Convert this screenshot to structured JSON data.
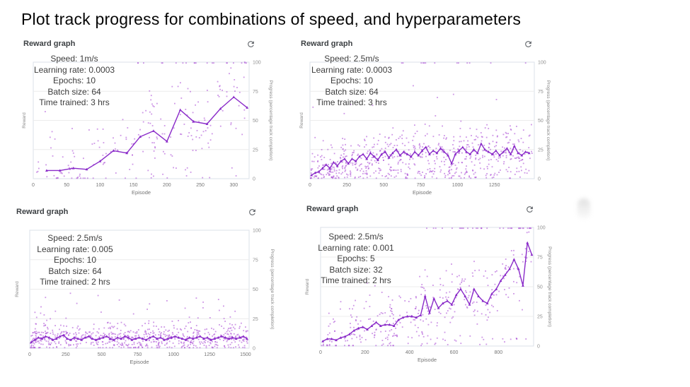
{
  "page": {
    "title": "Plot track progress for combinations of speed, and hyperparameters"
  },
  "icons": {
    "refresh": "refresh-icon"
  },
  "colors": {
    "line": "#8a2bc9",
    "scatter": "#ab4fd6",
    "grid": "#ececec",
    "plot_border": "#dbe0ea",
    "y_tick_text": "#919191",
    "x_tick_text": "#757575",
    "axis_label_text": "#8a8a8a",
    "header_text": "#3c4043",
    "icon": "#5f6368"
  },
  "axes": {
    "left_label": "Reward",
    "right_label": "Progress (percentage track completion)",
    "x_label": "Episode",
    "y_ticks": [
      0,
      25,
      50,
      75,
      100
    ],
    "y_range": [
      0,
      100
    ]
  },
  "chart_data": [
    {
      "type": "scatter",
      "title": "Reward graph",
      "annotation": [
        "Speed: 1m/s",
        "Learning rate: 0.0003",
        "Epochs: 10",
        "Batch size: 64",
        "Time trained: 3 hrs"
      ],
      "x_ticks": [
        0,
        50,
        100,
        150,
        200,
        250,
        300
      ],
      "x_max": 323,
      "line": {
        "x_start": 20,
        "x_step": 20,
        "values": [
          7,
          7,
          9,
          8,
          15,
          24,
          22,
          36,
          41,
          32,
          59,
          49,
          47,
          60,
          70,
          61
        ]
      },
      "scatter_spec": {
        "seed": 7,
        "count": 205,
        "x_min": 4,
        "x_max": 318,
        "spread": 46,
        "outlier_p": 0.06,
        "outlier_max": 35,
        "floor_p": 0.13,
        "floor_max": 10,
        "top_row": {
          "from": 140,
          "to": 320,
          "count": 20,
          "y": 99.3
        }
      }
    },
    {
      "type": "scatter",
      "title": "Reward graph",
      "annotation": [
        "Speed: 2.5m/s",
        "Learning rate: 0.0003",
        "Epochs: 10",
        "Batch size: 64",
        "Time trained: 3 hrs"
      ],
      "x_ticks": [
        0,
        250,
        500,
        750,
        1000,
        1250
      ],
      "x_max": 1520,
      "line": {
        "x_start": 10,
        "x_step": 25,
        "values": [
          3,
          5,
          6,
          9,
          12,
          9,
          14,
          11,
          15,
          17,
          13,
          17,
          15,
          19,
          21,
          17,
          22,
          19,
          16,
          21,
          23,
          18,
          22,
          25,
          20,
          23,
          21,
          19,
          23,
          20,
          24,
          27,
          21,
          24,
          22,
          26,
          23,
          20,
          13,
          21,
          24,
          27,
          23,
          21,
          25,
          22,
          30,
          25,
          23,
          21,
          24,
          20,
          23,
          26,
          21,
          28,
          22,
          20,
          23,
          22
        ]
      },
      "scatter_spec": {
        "seed": 11,
        "count": 660,
        "x_min": 4,
        "x_max": 1505,
        "spread": 30,
        "outlier_p": 0.05,
        "outlier_max": 65,
        "floor_p": 0.18,
        "floor_max": 9,
        "top_row": {
          "from": 620,
          "to": 1490,
          "count": 13,
          "y": 99.3
        }
      }
    },
    {
      "type": "scatter",
      "title": "Reward graph",
      "annotation": [
        "Speed: 2.5m/s",
        "Learning rate: 0.005",
        "Epochs: 10",
        "Batch size: 64",
        "Time trained: 2 hrs"
      ],
      "x_ticks": [
        0,
        250,
        500,
        750,
        1000,
        1250,
        1500
      ],
      "x_max": 1525,
      "line": {
        "x_start": 10,
        "x_step": 25,
        "values": [
          5,
          7,
          9,
          8,
          10,
          9,
          7,
          8,
          10,
          11,
          8,
          7,
          9,
          8,
          7,
          9,
          10,
          8,
          7,
          8,
          9,
          10,
          8,
          7,
          9,
          8,
          10,
          9,
          7,
          8,
          9,
          8,
          7,
          9,
          10,
          8,
          9,
          7,
          8,
          9,
          10,
          9,
          8,
          7,
          9,
          8,
          9,
          10,
          8,
          9,
          7,
          8,
          9,
          10,
          9,
          8,
          9,
          8,
          9,
          10,
          8
        ]
      },
      "scatter_spec": {
        "seed": 23,
        "count": 660,
        "x_min": 4,
        "x_max": 1515,
        "spread": 16,
        "outlier_p": 0.1,
        "outlier_max": 30,
        "floor_p": 0.0,
        "floor_max": 0,
        "top_row": null
      }
    },
    {
      "type": "scatter",
      "title": "Reward graph",
      "annotation": [
        "Speed: 2.5m/s",
        "Learning rate: 0.001",
        "Epochs: 5",
        "Batch size: 32",
        "Time trained: 2 hrs"
      ],
      "x_ticks": [
        0,
        200,
        400,
        600,
        800
      ],
      "x_max": 958,
      "line": {
        "x_start": 10,
        "x_step": 20,
        "values": [
          4,
          6,
          6,
          5,
          7,
          8,
          10,
          13,
          15,
          16,
          14,
          17,
          20,
          17,
          18,
          18,
          17,
          22,
          24,
          25,
          25,
          24,
          26,
          42,
          28,
          40,
          32,
          36,
          38,
          35,
          43,
          48,
          42,
          35,
          48,
          42,
          38,
          36,
          44,
          48,
          55,
          60,
          65,
          73,
          65,
          51,
          87,
          77
        ]
      },
      "scatter_spec": {
        "seed": 41,
        "count": 345,
        "x_min": 4,
        "x_max": 950,
        "spread": 38,
        "outlier_p": 0.06,
        "outlier_max": 30,
        "floor_p": 0.12,
        "floor_max": 10,
        "top_row": {
          "from": 470,
          "to": 950,
          "count": 33,
          "y": 99.3
        }
      }
    }
  ]
}
